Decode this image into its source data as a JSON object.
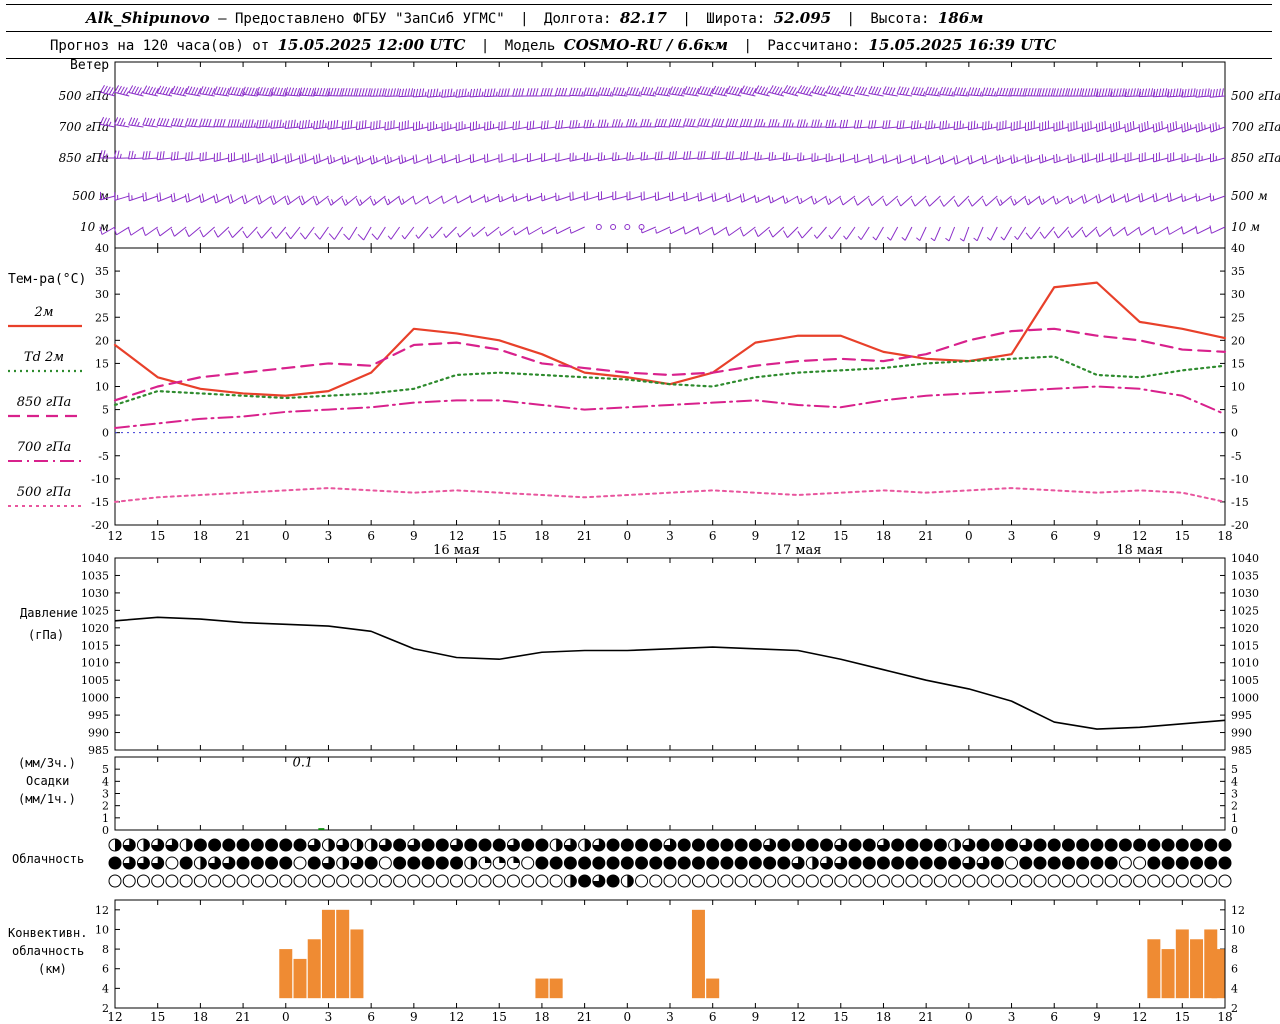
{
  "header": {
    "station": "Alk_Shipunovo",
    "provided": "— Предоставлено ФГБУ \"ЗапСиб УГМС\"",
    "sep": "|",
    "lon_label": "Долгота:",
    "lon": "82.17",
    "lat_label": "Широта:",
    "lat": "52.095",
    "alt_label": "Высота:",
    "alt": "186м",
    "forecast_label": "Прогноз на 120 часа(ов) от",
    "forecast_time": "15.05.2025 12:00 UTC",
    "model_label": "Модель",
    "model": "COSMO-RU / 6.6км",
    "calc_label": "Рассчитано:",
    "calc_time": "15.05.2025 16:39 UTC"
  },
  "panels": {
    "wind": {
      "title": "Ветер"
    },
    "temperature": {
      "title": "Тем-ра(°C)"
    },
    "pressure": {
      "label_line1": "Давление",
      "label_line2": "(гПа)"
    },
    "precip": {
      "label_line1": "(мм/3ч.)",
      "label_line2": "Осадки",
      "label_line3": "(мм/1ч.)"
    },
    "cloud": {
      "label": "Облачность"
    },
    "convective": {
      "label_line1": "Конвективн.",
      "label_line2": "облачность",
      "label_line3": "(км)"
    }
  },
  "time_axis": {
    "tick_hours": [
      0,
      3,
      6,
      9,
      12,
      15,
      18,
      21,
      24,
      27,
      30,
      33,
      36,
      39,
      42,
      45,
      48,
      51,
      54,
      57,
      60,
      63,
      66,
      69,
      72,
      75,
      78
    ],
    "tick_labels": [
      "12",
      "15",
      "18",
      "21",
      "0",
      "3",
      "6",
      "9",
      "12",
      "15",
      "18",
      "21",
      "0",
      "3",
      "6",
      "9",
      "12",
      "15",
      "18",
      "21",
      "0",
      "3",
      "6",
      "9",
      "12",
      "15",
      "18"
    ],
    "dates": [
      {
        "label": "16 мая",
        "hour": 24
      },
      {
        "label": "17 мая",
        "hour": 48
      },
      {
        "label": "18 мая",
        "hour": 72
      }
    ]
  },
  "chart_data": [
    {
      "id": "wind",
      "type": "wind-barbs",
      "title": "Ветер",
      "color": "#8b2fc9",
      "ctrl_step_hours": 6,
      "levels": [
        {
          "label": "500 гПа",
          "dir": [
            285,
            280,
            275,
            270,
            265,
            270,
            275,
            280,
            285,
            280,
            275,
            270,
            268,
            265
          ],
          "spd": [
            45,
            50,
            55,
            50,
            45,
            40,
            45,
            50,
            45,
            40,
            45,
            50,
            55,
            50
          ]
        },
        {
          "label": "700 гПа",
          "dir": [
            280,
            275,
            265,
            260,
            255,
            260,
            270,
            275,
            270,
            265,
            260,
            255,
            250,
            250
          ],
          "spd": [
            35,
            40,
            45,
            40,
            35,
            30,
            35,
            40,
            35,
            30,
            35,
            40,
            40,
            35
          ]
        },
        {
          "label": "850 гПа",
          "dir": [
            270,
            260,
            250,
            245,
            250,
            255,
            260,
            265,
            260,
            250,
            245,
            250,
            255,
            255
          ],
          "spd": [
            25,
            30,
            30,
            25,
            20,
            20,
            25,
            30,
            25,
            20,
            20,
            25,
            30,
            25
          ]
        },
        {
          "label": "500 м",
          "dir": [
            255,
            245,
            235,
            230,
            240,
            250,
            255,
            250,
            240,
            230,
            225,
            235,
            245,
            250
          ],
          "spd": [
            15,
            20,
            20,
            15,
            10,
            15,
            20,
            20,
            15,
            10,
            10,
            15,
            20,
            15
          ]
        },
        {
          "label": "10 м",
          "dir": [
            240,
            230,
            220,
            210,
            225,
            240,
            250,
            240,
            225,
            210,
            200,
            220,
            235,
            245
          ],
          "spd": [
            10,
            12,
            10,
            8,
            5,
            8,
            2,
            10,
            8,
            5,
            5,
            8,
            10,
            10
          ]
        }
      ]
    },
    {
      "id": "temperature",
      "type": "line",
      "ylabel": "Тем-ра(°C)",
      "ylim": [
        -20,
        40
      ],
      "yticks": [
        40,
        35,
        30,
        25,
        20,
        15,
        10,
        5,
        0,
        -5,
        -10,
        -15,
        -20
      ],
      "x_step_hours": 3,
      "zero_line_color": "#3b3bd6",
      "series": [
        {
          "name": "2м",
          "color": "#e8402a",
          "dash": "",
          "width": 2.2,
          "values": [
            19,
            12,
            9.5,
            8.5,
            8,
            9,
            13,
            22.5,
            21.5,
            20,
            17,
            13,
            12,
            10.5,
            13,
            19.5,
            21,
            21,
            17.5,
            16,
            15.5,
            17,
            31.5,
            32.5,
            24,
            22.5,
            20.5
          ]
        },
        {
          "name": "Td 2м",
          "color": "#2e8b2e",
          "dash": "2 4",
          "width": 2.2,
          "values": [
            6,
            9,
            8.5,
            8,
            7.5,
            8,
            8.5,
            9.5,
            12.5,
            13,
            12.5,
            12,
            11.5,
            10.5,
            10,
            12,
            13,
            13.5,
            14,
            15,
            15.5,
            16,
            16.5,
            12.5,
            12,
            13.5,
            14.5
          ]
        },
        {
          "name": "850 гПа",
          "color": "#d8218c",
          "dash": "12 7",
          "width": 2.2,
          "values": [
            7,
            10,
            12,
            13,
            14,
            15,
            14.5,
            19,
            19.5,
            18,
            15,
            14,
            13,
            12.5,
            13,
            14.5,
            15.5,
            16,
            15.5,
            17,
            20,
            22,
            22.5,
            21,
            20,
            18,
            17.5
          ]
        },
        {
          "name": "700 гПа",
          "color": "#d8218c",
          "dash": "14 5 2 5",
          "width": 2,
          "values": [
            1,
            2,
            3,
            3.5,
            4.5,
            5,
            5.5,
            6.5,
            7,
            7,
            6,
            5,
            5.5,
            6,
            6.5,
            7,
            6,
            5.5,
            7,
            8,
            8.5,
            9,
            9.5,
            10,
            9.5,
            8,
            4
          ]
        },
        {
          "name": "500 гПа",
          "color": "#e8569e",
          "dash": "3 4",
          "width": 2,
          "values": [
            -15,
            -14,
            -13.5,
            -13,
            -12.5,
            -12,
            -12.5,
            -13,
            -12.5,
            -13,
            -13.5,
            -14,
            -13.5,
            -13,
            -12.5,
            -13,
            -13.5,
            -13,
            -12.5,
            -13,
            -12.5,
            -12,
            -12.5,
            -13,
            -12.5,
            -13,
            -15
          ]
        }
      ]
    },
    {
      "id": "pressure",
      "type": "line",
      "ylabel": "Давление (гПа)",
      "ylim": [
        985,
        1040
      ],
      "yticks": [
        1040,
        1035,
        1030,
        1025,
        1020,
        1015,
        1010,
        1005,
        1000,
        995,
        990,
        985
      ],
      "x_step_hours": 3,
      "series": [
        {
          "name": "Давление",
          "color": "#000000",
          "dash": "",
          "width": 1.6,
          "values": [
            1022,
            1023,
            1022.5,
            1021.5,
            1021,
            1020.5,
            1019,
            1014,
            1011.5,
            1011,
            1013,
            1013.5,
            1013.5,
            1014,
            1014.5,
            1014,
            1013.5,
            1011,
            1008,
            1005,
            1002.5,
            999,
            993,
            991,
            991.5,
            992.5,
            993.5
          ]
        }
      ]
    },
    {
      "id": "precip",
      "type": "bar",
      "ylabel": "Осадки (мм/3ч.) (мм/1ч.)",
      "ylim": [
        0,
        6
      ],
      "yticks": [
        5,
        4,
        3,
        2,
        1,
        0
      ],
      "bars": [
        {
          "hour": 14.5,
          "value": 0.15,
          "color": "#0a8a0a"
        }
      ],
      "annotations": [
        {
          "text": "0.1",
          "hour": 13.2,
          "y_value": 5.2
        }
      ]
    },
    {
      "id": "cloud",
      "type": "cloud-cover",
      "label": "Облачность",
      "rows": [
        "2323324444444432322343443444344232344443444444344443443444423444344444444444444",
        "4333042334444043234044444211104444444444444444443233444444443340444444400444444",
        "0000000000000000000000000000000024342000000000000000000000000000000000000000000"
      ]
    },
    {
      "id": "convective",
      "type": "bar",
      "ylabel": "Конвективн. облачность (км)",
      "ylim": [
        2,
        13
      ],
      "yticks": [
        12,
        10,
        8,
        6,
        4,
        2
      ],
      "bar_color": "#ef8b33",
      "bars": [
        {
          "hour": 12,
          "base": 3,
          "top": 8
        },
        {
          "hour": 13,
          "base": 3,
          "top": 7
        },
        {
          "hour": 14,
          "base": 3,
          "top": 9
        },
        {
          "hour": 15,
          "base": 3,
          "top": 12
        },
        {
          "hour": 16,
          "base": 3,
          "top": 12
        },
        {
          "hour": 17,
          "base": 3,
          "top": 10
        },
        {
          "hour": 30,
          "base": 3,
          "top": 5
        },
        {
          "hour": 31,
          "base": 3,
          "top": 5
        },
        {
          "hour": 41,
          "base": 3,
          "top": 12
        },
        {
          "hour": 42,
          "base": 3,
          "top": 5
        },
        {
          "hour": 73,
          "base": 3,
          "top": 9
        },
        {
          "hour": 74,
          "base": 3,
          "top": 8
        },
        {
          "hour": 75,
          "base": 3,
          "top": 10
        },
        {
          "hour": 76,
          "base": 3,
          "top": 9
        },
        {
          "hour": 77,
          "base": 3,
          "top": 10
        },
        {
          "hour": 78,
          "base": 3,
          "top": 8
        }
      ]
    }
  ]
}
